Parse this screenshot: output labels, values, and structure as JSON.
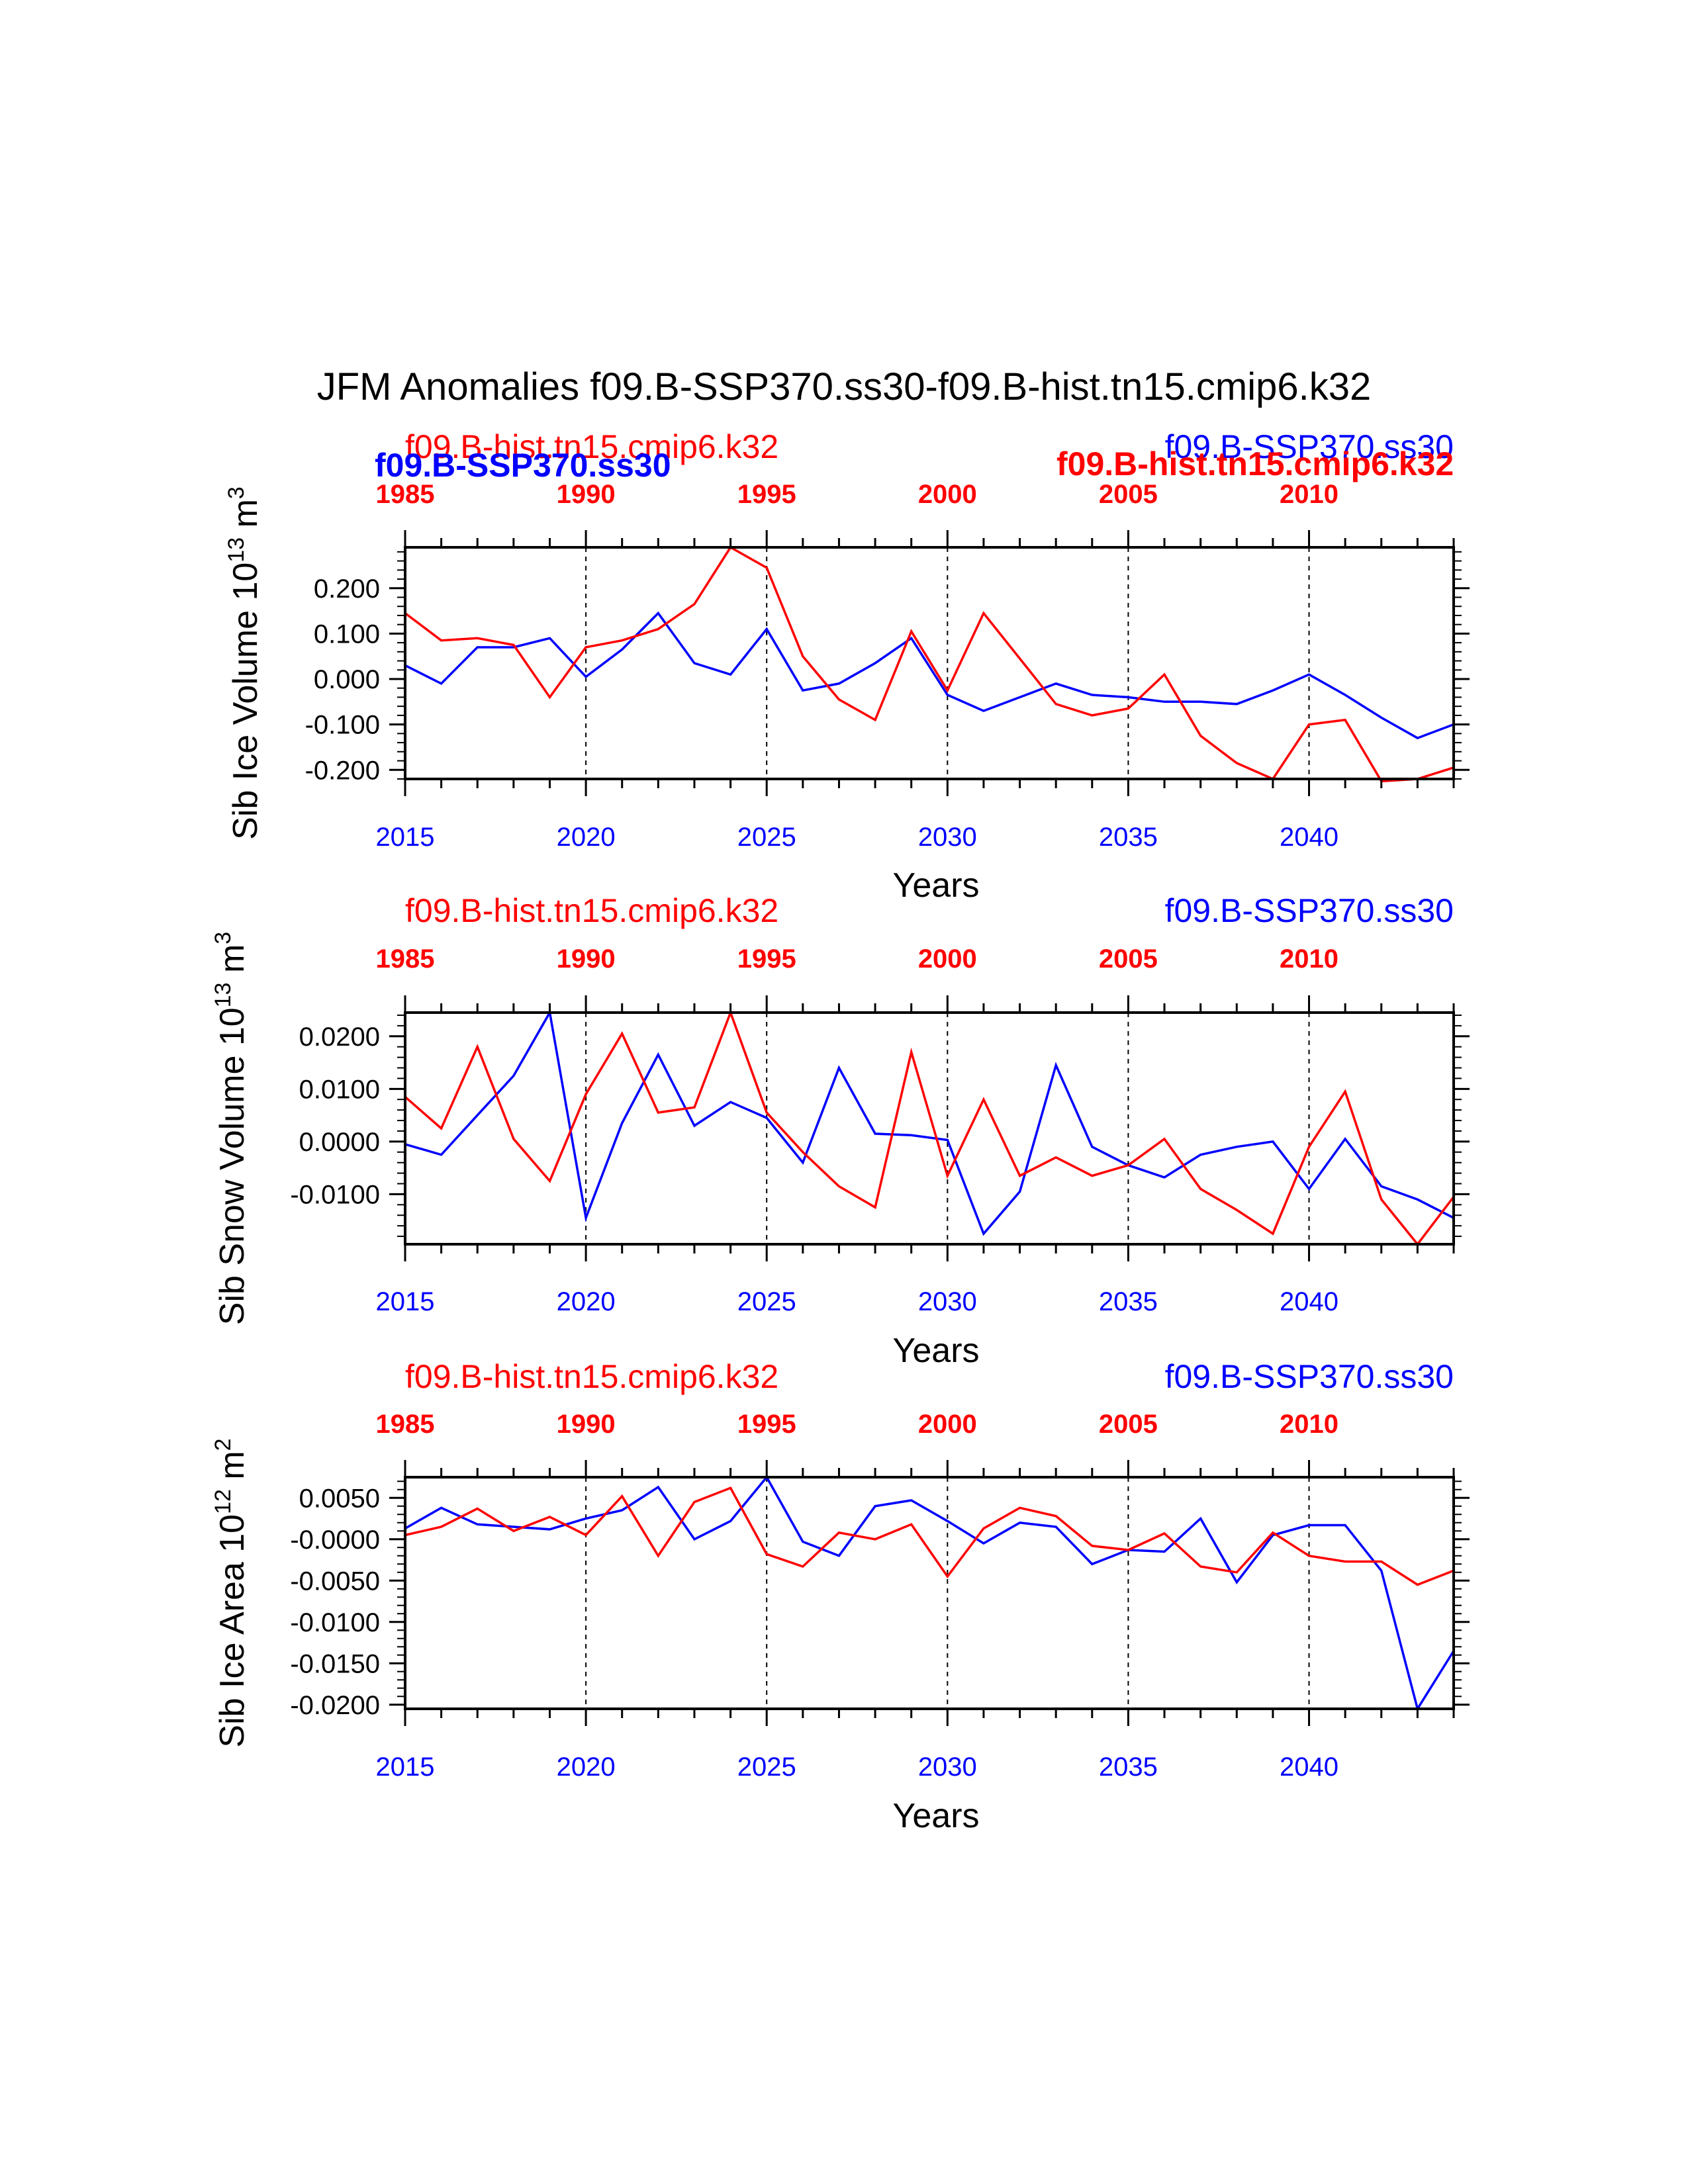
{
  "title": "JFM Anomalies f09.B-SSP370.ss30-f09.B-hist.tn15.cmip6.k32",
  "colors": {
    "ssp": "#0000ff",
    "hist": "#ff0000",
    "axis": "#000000"
  },
  "chart_data": [
    {
      "type": "line",
      "ylabel": "Sib Ice Volume 10",
      "ylabel_sup": "13",
      "ylabel_unit": " m",
      "ylabel_unit_sup": "3",
      "xlabel": "Years",
      "ylim": [
        -0.22,
        0.29
      ],
      "yticks": [
        0.2,
        0.1,
        0.0,
        -0.1,
        -0.2
      ],
      "yticklabels": [
        "0.200",
        "0.100",
        "0.000",
        "-0.100",
        "-0.200"
      ],
      "top_label_hist": "f09.B-hist.tn15.cmip6.k32",
      "top_label_ssp": "f09.B-SSP370.ss30",
      "overlap_label_ssp": "f09.B-SSP370.ss30",
      "overlap_label_hist": "f09.B-hist.tn15.cmip6.k32",
      "series": [
        {
          "name": "f09.B-SSP370.ss30",
          "color": "#0000ff",
          "x": [
            2015,
            2016,
            2017,
            2018,
            2019,
            2020,
            2021,
            2022,
            2023,
            2024,
            2025,
            2026,
            2027,
            2028,
            2029,
            2030,
            2031,
            2032,
            2033,
            2034,
            2035,
            2036,
            2037,
            2038,
            2039,
            2040,
            2041,
            2042,
            2043,
            2044
          ],
          "values": [
            0.03,
            -0.01,
            0.07,
            0.07,
            0.09,
            0.005,
            0.065,
            0.145,
            0.035,
            0.01,
            0.11,
            -0.025,
            -0.01,
            0.035,
            0.09,
            -0.035,
            -0.07,
            -0.04,
            -0.01,
            -0.035,
            -0.04,
            -0.05,
            -0.05,
            -0.055,
            -0.025,
            0.01,
            -0.035,
            -0.085,
            -0.13,
            -0.1
          ]
        },
        {
          "name": "f09.B-hist.tn15.cmip6.k32",
          "color": "#ff0000",
          "x": [
            2015,
            2016,
            2017,
            2018,
            2019,
            2020,
            2021,
            2022,
            2023,
            2024,
            2025,
            2026,
            2027,
            2028,
            2029,
            2030,
            2031,
            2032,
            2033,
            2034,
            2035,
            2036,
            2037,
            2038,
            2039,
            2040,
            2041,
            2042,
            2043,
            2044
          ],
          "values": [
            0.145,
            0.085,
            0.09,
            0.075,
            -0.04,
            0.07,
            0.085,
            0.11,
            0.165,
            0.29,
            0.245,
            0.05,
            -0.045,
            -0.09,
            0.105,
            -0.025,
            0.145,
            0.045,
            -0.055,
            -0.08,
            -0.065,
            0.01,
            -0.125,
            -0.185,
            -0.22,
            -0.1,
            -0.09,
            -0.225,
            -0.22,
            -0.195
          ]
        }
      ]
    },
    {
      "type": "line",
      "ylabel": "Sib Snow Volume 10",
      "ylabel_sup": "13",
      "ylabel_unit": " m",
      "ylabel_unit_sup": "3",
      "xlabel": "Years",
      "ylim": [
        -0.0195,
        0.0245
      ],
      "yticks": [
        0.02,
        0.01,
        0.0,
        -0.01
      ],
      "yticklabels": [
        "0.0200",
        "0.0100",
        "0.0000",
        "-0.0100"
      ],
      "top_label_hist": "f09.B-hist.tn15.cmip6.k32",
      "top_label_ssp": "f09.B-SSP370.ss30",
      "series": [
        {
          "name": "f09.B-SSP370.ss30",
          "color": "#0000ff",
          "x": [
            2015,
            2016,
            2017,
            2018,
            2019,
            2020,
            2021,
            2022,
            2023,
            2024,
            2025,
            2026,
            2027,
            2028,
            2029,
            2030,
            2031,
            2032,
            2033,
            2034,
            2035,
            2036,
            2037,
            2038,
            2039,
            2040,
            2041,
            2042,
            2043,
            2044
          ],
          "values": [
            -0.0005,
            -0.0025,
            0.005,
            0.0125,
            0.0245,
            -0.0145,
            0.0035,
            0.0165,
            0.003,
            0.0075,
            0.0045,
            -0.004,
            0.014,
            0.0015,
            0.0012,
            0.0003,
            -0.0175,
            -0.0095,
            0.0145,
            -0.001,
            -0.0045,
            -0.0068,
            -0.0025,
            -0.001,
            0.0,
            -0.009,
            0.0005,
            -0.0085,
            -0.011,
            -0.0145
          ]
        },
        {
          "name": "f09.B-hist.tn15.cmip6.k32",
          "color": "#ff0000",
          "x": [
            2015,
            2016,
            2017,
            2018,
            2019,
            2020,
            2021,
            2022,
            2023,
            2024,
            2025,
            2026,
            2027,
            2028,
            2029,
            2030,
            2031,
            2032,
            2033,
            2034,
            2035,
            2036,
            2037,
            2038,
            2039,
            2040,
            2041,
            2042,
            2043,
            2044
          ],
          "values": [
            0.0085,
            0.0025,
            0.018,
            0.0005,
            -0.0075,
            0.009,
            0.0205,
            0.0055,
            0.0065,
            0.0245,
            0.0055,
            -0.002,
            -0.0085,
            -0.0125,
            0.017,
            -0.0065,
            0.008,
            -0.0065,
            -0.003,
            -0.0065,
            -0.0045,
            0.0005,
            -0.009,
            -0.013,
            -0.0175,
            -0.001,
            0.0095,
            -0.011,
            -0.0195,
            -0.0105
          ]
        }
      ]
    },
    {
      "type": "line",
      "ylabel": "Sib Ice Area 10",
      "ylabel_sup": "12",
      "ylabel_unit": " m",
      "ylabel_unit_sup": "2",
      "xlabel": "Years",
      "ylim": [
        -0.0205,
        0.0075
      ],
      "yticks": [
        0.005,
        0.0,
        -0.005,
        -0.01,
        -0.015,
        -0.02
      ],
      "yticklabels": [
        "0.0050",
        "-0.0000",
        "-0.0050",
        "-0.0100",
        "-0.0150",
        "-0.0200"
      ],
      "top_label_hist": "f09.B-hist.tn15.cmip6.k32",
      "top_label_ssp": "f09.B-SSP370.ss30",
      "series": [
        {
          "name": "f09.B-SSP370.ss30",
          "color": "#0000ff",
          "x": [
            2015,
            2016,
            2017,
            2018,
            2019,
            2020,
            2021,
            2022,
            2023,
            2024,
            2025,
            2026,
            2027,
            2028,
            2029,
            2030,
            2031,
            2032,
            2033,
            2034,
            2035,
            2036,
            2037,
            2038,
            2039,
            2040,
            2041,
            2042,
            2043,
            2044
          ],
          "values": [
            0.0013,
            0.0038,
            0.0018,
            0.0015,
            0.0012,
            0.0025,
            0.0035,
            0.0063,
            0.0,
            0.0022,
            0.0075,
            -0.0003,
            -0.002,
            0.004,
            0.0047,
            0.0022,
            -0.0005,
            0.002,
            0.0015,
            -0.003,
            -0.0013,
            -0.0015,
            0.0025,
            -0.0052,
            0.0005,
            0.0017,
            0.0017,
            -0.0038,
            -0.0205,
            -0.0135
          ]
        },
        {
          "name": "f09.B-hist.tn15.cmip6.k32",
          "color": "#ff0000",
          "x": [
            2015,
            2016,
            2017,
            2018,
            2019,
            2020,
            2021,
            2022,
            2023,
            2024,
            2025,
            2026,
            2027,
            2028,
            2029,
            2030,
            2031,
            2032,
            2033,
            2034,
            2035,
            2036,
            2037,
            2038,
            2039,
            2040,
            2041,
            2042,
            2043,
            2044
          ],
          "values": [
            0.0005,
            0.0015,
            0.0037,
            0.001,
            0.0027,
            0.0005,
            0.0052,
            -0.002,
            0.0045,
            0.0062,
            -0.0018,
            -0.0033,
            0.0008,
            0.0,
            0.0018,
            -0.0045,
            0.0013,
            0.0038,
            0.0028,
            -0.0008,
            -0.0013,
            0.0007,
            -0.0033,
            -0.004,
            0.0008,
            -0.002,
            -0.0027,
            -0.0027,
            -0.0055,
            -0.0038
          ]
        }
      ]
    }
  ],
  "bottom_axis": {
    "min": 2015,
    "max": 2044,
    "labels": [
      "2015",
      "2020",
      "2025",
      "2030",
      "2035",
      "2040"
    ],
    "values": [
      2015,
      2020,
      2025,
      2030,
      2035,
      2040
    ]
  },
  "top_axis": {
    "labels": [
      "1985",
      "1990",
      "1995",
      "2000",
      "2005",
      "2010"
    ],
    "values": [
      2015,
      2020,
      2025,
      2030,
      2035,
      2040
    ]
  }
}
